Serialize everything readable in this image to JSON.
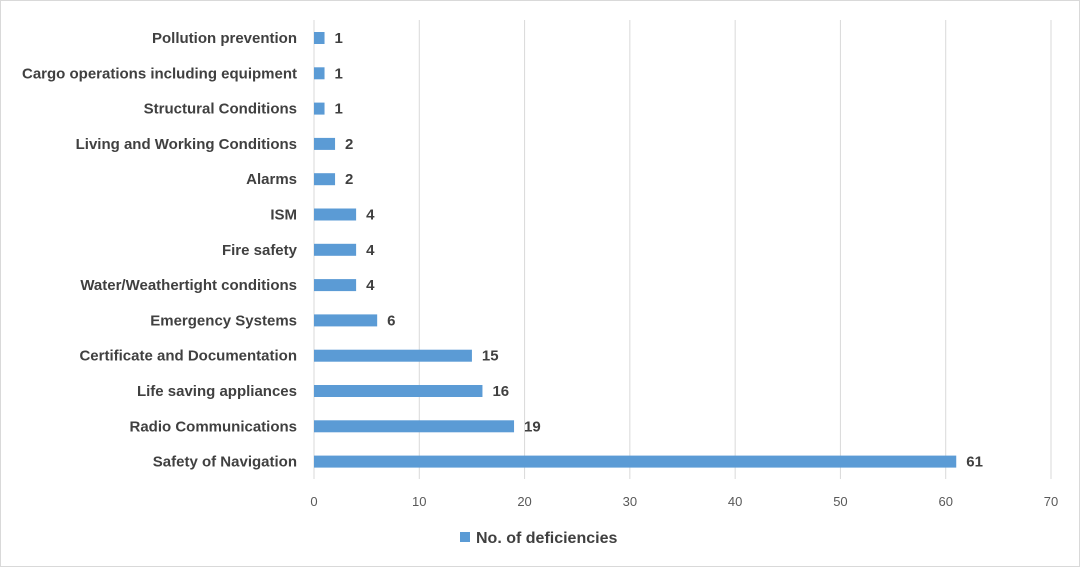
{
  "chart_data": {
    "type": "bar",
    "orientation": "horizontal",
    "categories": [
      "Pollution prevention",
      "Cargo operations including equipment",
      "Structural Conditions",
      "Living and Working Conditions",
      "Alarms",
      "ISM",
      "Fire safety",
      "Water/Weathertight conditions",
      "Emergency Systems",
      "Certificate and Documentation",
      "Life saving appliances",
      "Radio Communications",
      "Safety of Navigation"
    ],
    "series": [
      {
        "name": "No. of deficiencies",
        "values": [
          1,
          1,
          1,
          2,
          2,
          4,
          4,
          4,
          6,
          15,
          16,
          19,
          61
        ]
      }
    ],
    "xlim": [
      0,
      70
    ],
    "x_ticks": [
      "0",
      "10",
      "20",
      "30",
      "40",
      "50",
      "60",
      "70"
    ],
    "grid": true,
    "legend_position": "bottom",
    "bar_color": "#5b9bd5",
    "grid_color": "#d9d9d9"
  }
}
